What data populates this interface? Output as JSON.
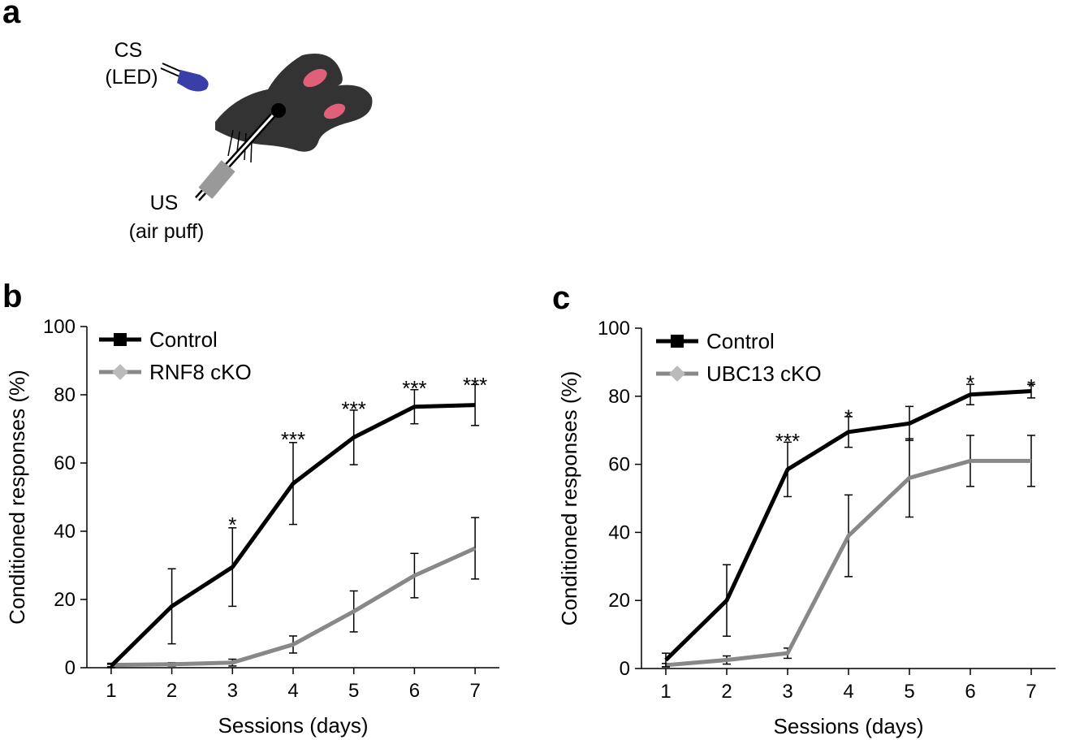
{
  "panel_a": {
    "letter": "a",
    "cs_label_line1": "CS",
    "cs_label_line2": "(LED)",
    "us_label_line1": "US",
    "us_label_line2": "(air puff)",
    "colors": {
      "rabbit": "#333333",
      "ear_inner": "#e0607a",
      "led": "#3a3ea8",
      "puff_tube": "#999999"
    }
  },
  "chart_data": [
    {
      "type": "line",
      "panel": "b",
      "xlabel": "Sessions (days)",
      "ylabel": "Conditioned responses (%)",
      "x": [
        1,
        2,
        3,
        4,
        5,
        6,
        7
      ],
      "xlim": [
        0.6,
        7.4
      ],
      "ylim": [
        0,
        100
      ],
      "yticks": [
        0,
        20,
        40,
        60,
        80,
        100
      ],
      "grid": false,
      "legend_position": "top-left",
      "series": [
        {
          "name": "Control",
          "color": "#000000",
          "marker": "square",
          "values": [
            0.5,
            18,
            29.5,
            54,
            67.5,
            76.5,
            77
          ],
          "errors": [
            0.5,
            11,
            11.5,
            12,
            8,
            5,
            6
          ]
        },
        {
          "name": "RNF8 cKO",
          "color": "#888888",
          "marker": "diamond",
          "values": [
            0.8,
            1,
            1.5,
            6.8,
            16.5,
            27,
            35
          ],
          "errors": [
            0.5,
            0.5,
            1,
            2.5,
            6,
            6.5,
            9
          ]
        }
      ],
      "significance": [
        {
          "x": 3,
          "label": "*",
          "y": 44
        },
        {
          "x": 4,
          "label": "***",
          "y": 69
        },
        {
          "x": 5,
          "label": "***",
          "y": 78
        },
        {
          "x": 6,
          "label": "***",
          "y": 84
        },
        {
          "x": 7,
          "label": "***",
          "y": 85
        }
      ]
    },
    {
      "type": "line",
      "panel": "c",
      "xlabel": "Sessions (days)",
      "ylabel": "Conditioned responses (%)",
      "x": [
        1,
        2,
        3,
        4,
        5,
        6,
        7
      ],
      "xlim": [
        0.6,
        7.4
      ],
      "ylim": [
        0,
        100
      ],
      "yticks": [
        0,
        20,
        40,
        60,
        80,
        100
      ],
      "grid": false,
      "legend_position": "top-left",
      "series": [
        {
          "name": "Control",
          "color": "#000000",
          "marker": "square",
          "values": [
            2.5,
            20,
            58.5,
            69.5,
            72,
            80.5,
            81.5
          ],
          "errors": [
            2,
            10.5,
            8,
            4.5,
            5,
            3,
            2
          ]
        },
        {
          "name": "UBC13 cKO",
          "color": "#888888",
          "marker": "diamond",
          "values": [
            1,
            2.5,
            4.5,
            39,
            56,
            61,
            61
          ],
          "errors": [
            0.5,
            1.2,
            1.5,
            12,
            11.5,
            7.5,
            7.5
          ]
        }
      ],
      "significance": [
        {
          "x": 3,
          "label": "***",
          "y": 69
        },
        {
          "x": 4,
          "label": "*",
          "y": 76
        },
        {
          "x": 6,
          "label": "*",
          "y": 86
        },
        {
          "x": 7,
          "label": "*",
          "y": 85
        }
      ]
    }
  ]
}
